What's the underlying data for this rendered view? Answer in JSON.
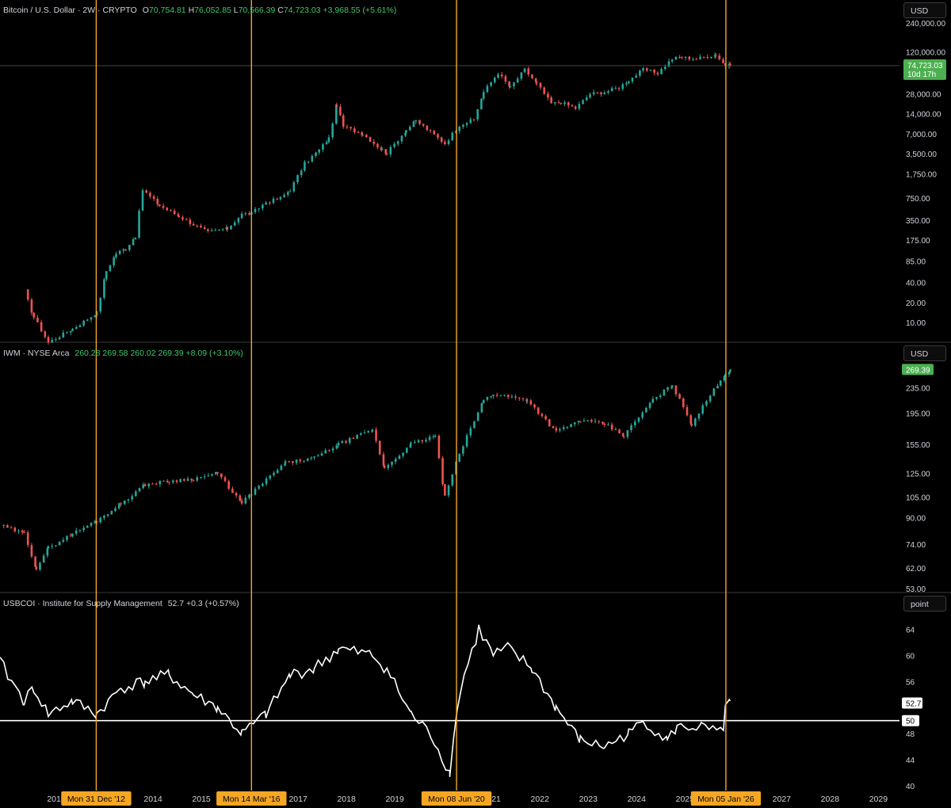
{
  "panels": [
    {
      "id": "btc",
      "symbol": "Bitcoin / U.S. Dollar · 2W · CRYPTO",
      "ohlc": {
        "o_label": "O",
        "o": "70,754.81",
        "h_label": "H",
        "h": "76,052.85",
        "l_label": "L",
        "l": "70,566.39",
        "c_label": "C",
        "c": "74,723.03",
        "chg": "+3,968.55 (+5.61%)"
      },
      "currency": "USD",
      "last_price": "74,723.03",
      "countdown": "10d 17h",
      "ticks": [
        "240,000.00",
        "120,000.00",
        "28,000.00",
        "14,000.00",
        "7,000.00",
        "3,500.00",
        "1,750.00",
        "750.00",
        "350.00",
        "175.00",
        "85.00",
        "40.00",
        "20.00",
        "10.00"
      ]
    },
    {
      "id": "iwm",
      "symbol": "IWM · NYSE Arca",
      "values": [
        "260.28",
        "269.58",
        "260.02",
        "269.39",
        "+8.09 (+3.10%)"
      ],
      "currency": "USD",
      "last_price": "269.39",
      "ticks": [
        "235.00",
        "195.00",
        "155.00",
        "125.00",
        "105.00",
        "90.00",
        "74.00",
        "62.00",
        "53.00"
      ]
    },
    {
      "id": "ism",
      "symbol": "USBCOI · Institute for Supply Management",
      "values": [
        "52.7",
        "+0.3 (+0.57%)"
      ],
      "currency": "point",
      "last_value": "52.7",
      "ref_label": "50",
      "ticks": [
        "64",
        "60",
        "56",
        "48",
        "44",
        "40"
      ]
    }
  ],
  "x_axis": {
    "years": [
      "2012",
      "2014",
      "2015",
      "2017",
      "2018",
      "2019",
      "2021",
      "2022",
      "2023",
      "2024",
      "2025",
      "2027",
      "2028",
      "2029"
    ],
    "markers": [
      "Mon 31 Dec '12",
      "Mon 14 Mar '16",
      "Mon 08 Jun '20",
      "Mon 05 Jan '26"
    ]
  },
  "colors": {
    "up": "#26a69a",
    "down": "#ef5350",
    "vline": "#f5a623",
    "line": "#ffffff",
    "badge": "#4caf50",
    "marker_bg": "#f5a623"
  },
  "chart_data": [
    {
      "type": "candlestick",
      "title": "Bitcoin / U.S. Dollar · 2W · CRYPTO",
      "y_scale": "log",
      "ylim": [
        7,
        320000
      ],
      "x": [
        2011.5,
        2011.7,
        2012.0,
        2012.5,
        2013.0,
        2013.2,
        2013.4,
        2013.6,
        2013.8,
        2013.95,
        2014.3,
        2014.7,
        2015.0,
        2015.3,
        2015.7,
        2016.0,
        2016.2,
        2016.5,
        2016.8,
        2017.0,
        2017.3,
        2017.6,
        2017.8,
        2017.96,
        2018.1,
        2018.5,
        2018.9,
        2019.0,
        2019.4,
        2019.6,
        2019.9,
        2020.2,
        2020.5,
        2020.8,
        2021.0,
        2021.3,
        2021.55,
        2021.85,
        2022.1,
        2022.4,
        2022.6,
        2022.9,
        2023.2,
        2023.5,
        2023.8,
        2024.0,
        2024.3,
        2024.6,
        2024.9,
        2025.1,
        2025.4,
        2025.8,
        2026.0,
        2026.1
      ],
      "close": [
        30,
        12,
        5,
        8,
        14,
        60,
        110,
        130,
        200,
        1000,
        580,
        400,
        300,
        230,
        260,
        430,
        440,
        650,
        750,
        1000,
        2500,
        4000,
        6000,
        19000,
        9000,
        7000,
        4000,
        3600,
        8000,
        11000,
        7500,
        5000,
        9500,
        11500,
        30000,
        58000,
        35000,
        65000,
        40000,
        20000,
        21000,
        17000,
        28000,
        30000,
        35000,
        45000,
        65000,
        58000,
        95000,
        100000,
        95000,
        110000,
        75000,
        74723
      ]
    },
    {
      "type": "candlestick",
      "title": "IWM · NYSE Arca",
      "y_scale": "log",
      "ylim": [
        53,
        270
      ],
      "x": [
        2011.0,
        2011.5,
        2011.75,
        2012.0,
        2012.5,
        2013.0,
        2013.5,
        2014.0,
        2014.5,
        2015.0,
        2015.5,
        2016.0,
        2016.2,
        2016.9,
        2017.5,
        2018.0,
        2018.7,
        2018.95,
        2019.5,
        2020.0,
        2020.2,
        2020.5,
        2021.0,
        2021.2,
        2021.9,
        2022.5,
        2023.0,
        2023.5,
        2023.9,
        2024.5,
        2024.9,
        2025.3,
        2025.9,
        2026.0,
        2026.1
      ],
      "close": [
        85,
        80,
        62,
        72,
        80,
        88,
        100,
        115,
        118,
        120,
        125,
        100,
        108,
        135,
        140,
        155,
        172,
        130,
        155,
        165,
        105,
        145,
        215,
        225,
        215,
        170,
        185,
        180,
        165,
        215,
        240,
        180,
        250,
        260,
        269.39
      ]
    },
    {
      "type": "line",
      "title": "USBCOI · Institute for Supply Management",
      "ylim": [
        40,
        66
      ],
      "reference": 50,
      "x": [
        2011.0,
        2011.5,
        2011.7,
        2012.0,
        2012.5,
        2013.0,
        2013.5,
        2014.0,
        2014.5,
        2015.0,
        2015.5,
        2016.0,
        2016.5,
        2017.0,
        2017.5,
        2018.0,
        2018.7,
        2019.0,
        2019.5,
        2019.9,
        2020.3,
        2020.45,
        2020.6,
        2020.9,
        2021.2,
        2021.5,
        2022.0,
        2022.5,
        2023.0,
        2023.5,
        2024.0,
        2024.3,
        2024.8,
        2025.0,
        2025.5,
        2025.96,
        2026.0,
        2026.1
      ],
      "values": [
        59,
        53,
        55,
        51,
        53,
        51,
        55,
        56,
        57,
        54,
        52,
        48,
        51,
        57,
        58,
        61,
        60,
        58,
        51,
        48,
        42,
        52,
        57,
        64,
        60,
        61,
        58,
        52,
        47,
        46,
        48,
        50,
        47,
        49,
        49,
        48,
        53,
        53
      ]
    }
  ]
}
